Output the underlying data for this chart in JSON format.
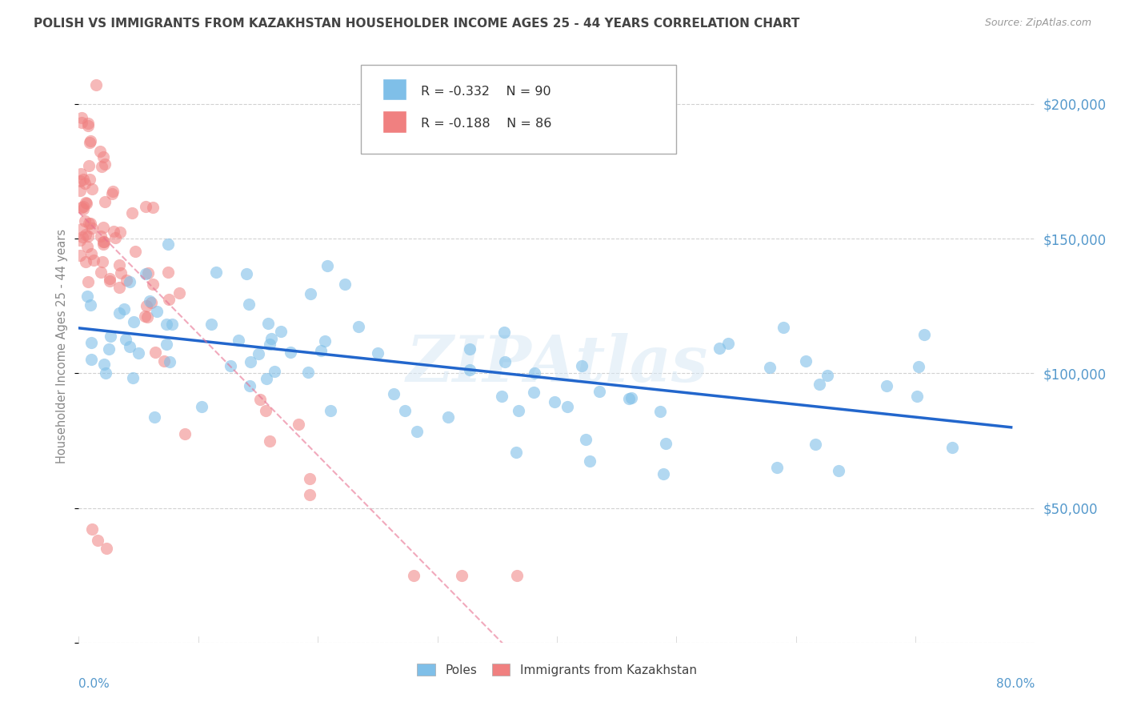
{
  "title": "POLISH VS IMMIGRANTS FROM KAZAKHSTAN HOUSEHOLDER INCOME AGES 25 - 44 YEARS CORRELATION CHART",
  "source_text": "Source: ZipAtlas.com",
  "ylabel": "Householder Income Ages 25 - 44 years",
  "xlim": [
    0.0,
    0.8
  ],
  "ylim": [
    0,
    220000
  ],
  "yticks": [
    0,
    50000,
    100000,
    150000,
    200000
  ],
  "ytick_labels": [
    "",
    "$50,000",
    "$100,000",
    "$150,000",
    "$200,000"
  ],
  "legend_r1": "R = -0.332",
  "legend_n1": "N = 90",
  "legend_r2": "R = -0.188",
  "legend_n2": "N = 86",
  "poles_color": "#7FBFE8",
  "kaz_color": "#F08080",
  "trendline_poles_color": "#2266CC",
  "trendline_kaz_color": "#E87090",
  "watermark": "ZIPAtlas",
  "background_color": "#FFFFFF",
  "grid_color": "#CCCCCC",
  "title_color": "#444444",
  "axis_color": "#5599CC",
  "legend_box_color": "#DDDDDD",
  "source_color": "#999999"
}
